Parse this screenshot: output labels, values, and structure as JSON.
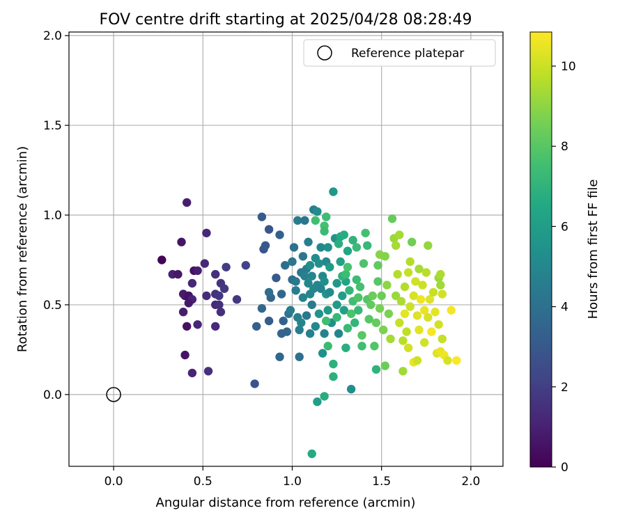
{
  "chart_data": {
    "type": "scatter",
    "title": "FOV centre drift starting at 2025/04/28 08:28:49",
    "xlabel": "Angular distance from reference (arcmin)",
    "ylabel": "Rotation from reference (arcmin)",
    "xlim": [
      -0.25,
      2.18
    ],
    "ylim": [
      -0.4,
      2.02
    ],
    "x_ticks": [
      0.0,
      0.5,
      1.0,
      1.5,
      2.0
    ],
    "x_tick_labels": [
      "0.0",
      "0.5",
      "1.0",
      "1.5",
      "2.0"
    ],
    "y_ticks": [
      0.0,
      0.5,
      1.0,
      1.5,
      2.0
    ],
    "y_tick_labels": [
      "0.0",
      "0.5",
      "1.0",
      "1.5",
      "2.0"
    ],
    "grid": true,
    "legend": {
      "placement": "top-right",
      "entries": [
        "Reference platepar"
      ]
    },
    "reference_point": {
      "name": "Reference platepar",
      "x": 0.0,
      "y": 0.0
    },
    "colorbar": {
      "label": "Hours from first FF file",
      "colormap": "viridis",
      "range": [
        0,
        10.85
      ],
      "ticks": [
        0,
        2,
        4,
        6,
        8,
        10
      ],
      "tick_labels": [
        "0",
        "2",
        "4",
        "6",
        "8",
        "10"
      ]
    },
    "series": [
      {
        "color_by": "hours",
        "points": [
          [
            0.27,
            0.75,
            0.1
          ],
          [
            0.41,
            1.07,
            0.9
          ],
          [
            0.38,
            0.85,
            0.6
          ],
          [
            0.52,
            0.9,
            1.2
          ],
          [
            0.33,
            0.67,
            1.0
          ],
          [
            0.36,
            0.67,
            0.7
          ],
          [
            0.45,
            0.69,
            0.4
          ],
          [
            0.47,
            0.69,
            0.9
          ],
          [
            0.51,
            0.73,
            1.2
          ],
          [
            0.57,
            0.67,
            1.5
          ],
          [
            0.63,
            0.71,
            1.9
          ],
          [
            0.6,
            0.62,
            1.6
          ],
          [
            0.62,
            0.59,
            1.8
          ],
          [
            0.44,
            0.62,
            1.2
          ],
          [
            0.4,
            0.55,
            0.3
          ],
          [
            0.39,
            0.56,
            0.8
          ],
          [
            0.42,
            0.55,
            0.5
          ],
          [
            0.44,
            0.53,
            1.1
          ],
          [
            0.52,
            0.55,
            1.4
          ],
          [
            0.57,
            0.56,
            1.6
          ],
          [
            0.59,
            0.55,
            1.7
          ],
          [
            0.69,
            0.53,
            1.8
          ],
          [
            0.39,
            0.46,
            0.9
          ],
          [
            0.42,
            0.51,
            0.7
          ],
          [
            0.57,
            0.5,
            1.3
          ],
          [
            0.59,
            0.5,
            1.5
          ],
          [
            0.6,
            0.46,
            1.5
          ],
          [
            0.41,
            0.38,
            0.5
          ],
          [
            0.47,
            0.39,
            1.2
          ],
          [
            0.57,
            0.38,
            1.3
          ],
          [
            0.4,
            0.22,
            0.6
          ],
          [
            0.44,
            0.12,
            1.1
          ],
          [
            0.53,
            0.13,
            1.5
          ],
          [
            0.74,
            0.72,
            2.2
          ],
          [
            0.79,
            0.06,
            2.8
          ],
          [
            0.8,
            0.38,
            3.3
          ],
          [
            0.83,
            0.48,
            3.6
          ],
          [
            0.84,
            0.81,
            2.9
          ],
          [
            0.85,
            0.83,
            3.0
          ],
          [
            0.87,
            0.92,
            2.9
          ],
          [
            0.83,
            0.99,
            3.1
          ],
          [
            0.88,
            0.54,
            3.5
          ],
          [
            0.87,
            0.57,
            3.9
          ],
          [
            0.87,
            0.41,
            3.2
          ],
          [
            0.91,
            0.65,
            3.0
          ],
          [
            0.93,
            0.89,
            3.3
          ],
          [
            0.94,
            0.56,
            3.6
          ],
          [
            0.93,
            0.21,
            3.6
          ],
          [
            0.95,
            0.41,
            3.4
          ],
          [
            0.94,
            0.34,
            3.5
          ],
          [
            0.96,
            0.72,
            4.0
          ],
          [
            0.97,
            0.35,
            3.5
          ],
          [
            0.98,
            0.45,
            4.2
          ],
          [
            0.99,
            0.47,
            4.5
          ],
          [
            1.0,
            0.74,
            4.3
          ],
          [
            1.01,
            0.82,
            4.1
          ],
          [
            1.0,
            0.64,
            3.9
          ],
          [
            1.02,
            0.58,
            4.6
          ],
          [
            1.02,
            0.63,
            4.3
          ],
          [
            1.03,
            0.43,
            4.7
          ],
          [
            1.03,
            0.97,
            4.5
          ],
          [
            1.04,
            0.36,
            4.6
          ],
          [
            1.04,
            0.21,
            4.1
          ],
          [
            1.05,
            0.68,
            4.4
          ],
          [
            1.05,
            0.4,
            4.9
          ],
          [
            1.06,
            0.54,
            4.8
          ],
          [
            1.06,
            0.77,
            4.3
          ],
          [
            1.07,
            0.97,
            4.2
          ],
          [
            1.07,
            0.66,
            4.7
          ],
          [
            1.08,
            0.44,
            4.3
          ],
          [
            1.08,
            0.7,
            4.5
          ],
          [
            1.09,
            0.85,
            4.6
          ],
          [
            1.09,
            0.62,
            4.9
          ],
          [
            1.1,
            0.34,
            4.7
          ],
          [
            1.1,
            0.56,
            5.0
          ],
          [
            1.1,
            0.72,
            5.3
          ],
          [
            1.11,
            0.5,
            4.5
          ],
          [
            1.11,
            0.66,
            4.9
          ],
          [
            1.12,
            0.59,
            5.0
          ],
          [
            1.12,
            1.03,
            4.6
          ],
          [
            1.13,
            0.76,
            5.2
          ],
          [
            1.13,
            0.38,
            5.0
          ],
          [
            1.14,
            1.02,
            5.1
          ],
          [
            1.14,
            0.61,
            4.9
          ],
          [
            1.15,
            0.73,
            5.4
          ],
          [
            1.15,
            0.45,
            5.5
          ],
          [
            1.16,
            0.82,
            5.0
          ],
          [
            1.16,
            0.59,
            4.8
          ],
          [
            1.17,
            0.66,
            5.0
          ],
          [
            1.17,
            0.23,
            5.4
          ],
          [
            1.18,
            0.63,
            5.3
          ],
          [
            1.18,
            0.34,
            4.8
          ],
          [
            1.19,
            0.74,
            5.0
          ],
          [
            1.19,
            0.56,
            5.6
          ],
          [
            1.2,
            0.82,
            5.4
          ],
          [
            1.2,
            0.47,
            5.8
          ],
          [
            1.21,
            0.57,
            5.1
          ],
          [
            1.21,
            0.71,
            5.9
          ],
          [
            1.22,
            0.4,
            5.3
          ],
          [
            1.23,
            1.13,
            5.7
          ],
          [
            1.24,
            0.87,
            5.5
          ],
          [
            1.25,
            0.62,
            5.7
          ],
          [
            1.25,
            0.5,
            5.9
          ],
          [
            1.26,
            0.34,
            4.9
          ],
          [
            1.27,
            0.74,
            6.2
          ],
          [
            1.28,
            0.55,
            6.0
          ],
          [
            1.29,
            0.47,
            6.1
          ],
          [
            1.3,
            0.63,
            6.3
          ],
          [
            1.31,
            0.8,
            6.4
          ],
          [
            1.33,
            0.03,
            5.4
          ],
          [
            1.13,
            0.97,
            7.5
          ],
          [
            1.18,
            0.94,
            7.6
          ],
          [
            1.18,
            0.91,
            7.3
          ],
          [
            1.19,
            0.99,
            7.4
          ],
          [
            1.14,
            -0.04,
            6.0
          ],
          [
            1.11,
            -0.33,
            6.6
          ],
          [
            1.19,
            0.41,
            7.5
          ],
          [
            1.2,
            0.27,
            7.3
          ],
          [
            1.23,
            0.17,
            6.9
          ],
          [
            1.23,
            0.1,
            6.9
          ],
          [
            1.18,
            -0.01,
            6.7
          ],
          [
            1.25,
            0.43,
            7.2
          ],
          [
            1.26,
            0.84,
            6.8
          ],
          [
            1.27,
            0.88,
            6.6
          ],
          [
            1.28,
            0.66,
            7.0
          ],
          [
            1.29,
            0.89,
            6.7
          ],
          [
            1.3,
            0.26,
            6.8
          ],
          [
            1.3,
            0.67,
            7.4
          ],
          [
            1.31,
            0.71,
            7.7
          ],
          [
            1.31,
            0.37,
            7.3
          ],
          [
            1.32,
            0.58,
            7.1
          ],
          [
            1.33,
            0.45,
            7.8
          ],
          [
            1.34,
            0.86,
            7.0
          ],
          [
            1.34,
            0.52,
            7.5
          ],
          [
            1.35,
            0.4,
            7.1
          ],
          [
            1.36,
            0.64,
            7.4
          ],
          [
            1.36,
            0.82,
            7.3
          ],
          [
            1.37,
            0.54,
            7.8
          ],
          [
            1.37,
            0.47,
            7.2
          ],
          [
            1.38,
            0.6,
            7.6
          ],
          [
            1.39,
            0.27,
            7.5
          ],
          [
            1.39,
            0.33,
            8.0
          ],
          [
            1.4,
            0.73,
            7.8
          ],
          [
            1.41,
            0.9,
            7.6
          ],
          [
            1.42,
            0.53,
            7.9
          ],
          [
            1.42,
            0.83,
            7.2
          ],
          [
            1.43,
            0.42,
            8.0
          ],
          [
            1.44,
            0.5,
            8.2
          ],
          [
            1.45,
            0.55,
            8.4
          ],
          [
            1.46,
            0.27,
            7.9
          ],
          [
            1.47,
            0.14,
            7.0
          ],
          [
            1.47,
            0.4,
            8.3
          ],
          [
            1.48,
            0.72,
            8.2
          ],
          [
            1.48,
            0.63,
            8.0
          ],
          [
            1.49,
            0.48,
            8.6
          ],
          [
            1.49,
            0.78,
            8.9
          ],
          [
            1.5,
            0.55,
            8.4
          ],
          [
            1.51,
            0.36,
            8.7
          ],
          [
            1.52,
            0.77,
            8.8
          ],
          [
            1.52,
            0.16,
            8.4
          ],
          [
            1.53,
            0.61,
            9.0
          ],
          [
            1.54,
            0.45,
            8.7
          ],
          [
            1.55,
            0.31,
            9.4
          ],
          [
            1.56,
            0.98,
            8.3
          ],
          [
            1.57,
            0.87,
            9.2
          ],
          [
            1.58,
            0.83,
            9.4
          ],
          [
            1.58,
            0.55,
            9.2
          ],
          [
            1.59,
            0.67,
            9.6
          ],
          [
            1.6,
            0.4,
            9.9
          ],
          [
            1.6,
            0.89,
            9.4
          ],
          [
            1.61,
            0.52,
            9.5
          ],
          [
            1.62,
            0.3,
            9.7
          ],
          [
            1.62,
            0.13,
            9.3
          ],
          [
            1.63,
            0.6,
            9.6
          ],
          [
            1.63,
            0.45,
            10.4
          ],
          [
            1.64,
            0.35,
            9.8
          ],
          [
            1.65,
            0.68,
            9.9
          ],
          [
            1.65,
            0.26,
            10.1
          ],
          [
            1.66,
            0.74,
            9.6
          ],
          [
            1.66,
            0.49,
            10.0
          ],
          [
            1.67,
            0.85,
            8.5
          ],
          [
            1.68,
            0.55,
            10.2
          ],
          [
            1.68,
            0.18,
            10.5
          ],
          [
            1.69,
            0.63,
            10.1
          ],
          [
            1.7,
            0.44,
            10.3
          ],
          [
            1.7,
            0.19,
            10.0
          ],
          [
            1.71,
            0.7,
            9.4
          ],
          [
            1.71,
            0.36,
            10.4
          ],
          [
            1.72,
            0.53,
            10.6
          ],
          [
            1.73,
            0.61,
            10.0
          ],
          [
            1.74,
            0.47,
            10.5
          ],
          [
            1.74,
            0.29,
            10.1
          ],
          [
            1.75,
            0.68,
            9.7
          ],
          [
            1.76,
            0.43,
            10.2
          ],
          [
            1.76,
            0.83,
            9.1
          ],
          [
            1.77,
            0.53,
            10.3
          ],
          [
            1.78,
            0.35,
            10.7
          ],
          [
            1.79,
            0.57,
            9.9
          ],
          [
            1.8,
            0.46,
            10.4
          ],
          [
            1.81,
            0.23,
            10.3
          ],
          [
            1.82,
            0.65,
            9.2
          ],
          [
            1.82,
            0.39,
            10.1
          ],
          [
            1.83,
            0.67,
            9.5
          ],
          [
            1.83,
            0.61,
            9.3
          ],
          [
            1.83,
            0.24,
            10.5
          ],
          [
            1.84,
            0.56,
            10.1
          ],
          [
            1.84,
            0.31,
            9.9
          ],
          [
            1.85,
            0.22,
            10.6
          ],
          [
            1.87,
            0.19,
            10.2
          ],
          [
            1.89,
            0.47,
            10.7
          ],
          [
            1.92,
            0.19,
            10.8
          ]
        ]
      }
    ]
  }
}
